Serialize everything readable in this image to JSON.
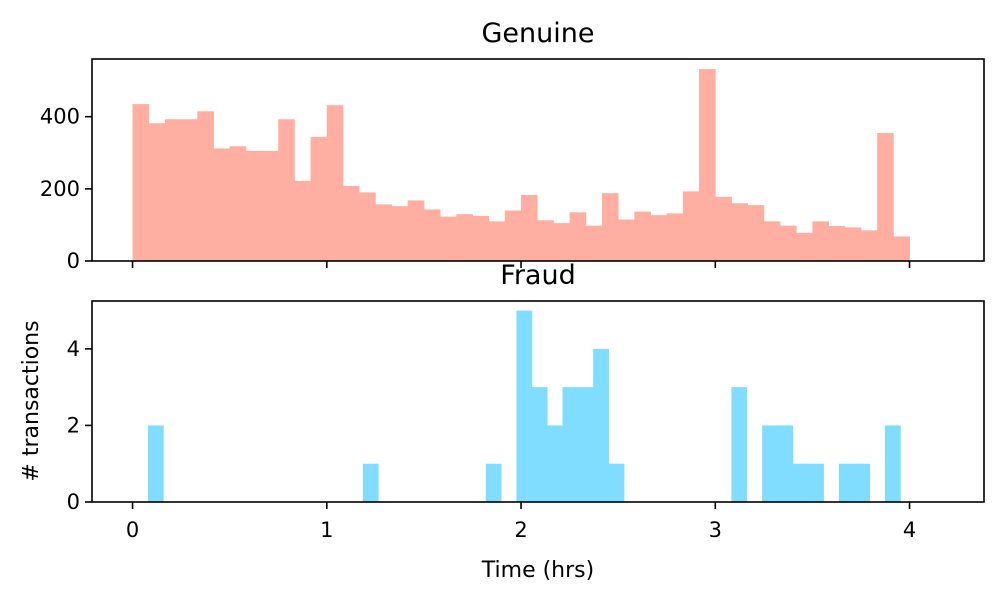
{
  "chart_data": [
    {
      "type": "bar",
      "title": "Genuine",
      "xlabel": "",
      "ylabel": "",
      "color": "#ffaea1",
      "xlim": [
        -0.2087,
        4.3833
      ],
      "ylim": [
        0,
        560
      ],
      "x_ticks": [
        0,
        1,
        2,
        3,
        4
      ],
      "show_x_tick_labels": false,
      "y_ticks": [
        0,
        200,
        400
      ],
      "y_tick_labels": [
        "0",
        "200",
        "400"
      ],
      "grid": false,
      "bins": {
        "start": 0,
        "width": 0.08333,
        "values": [
          435,
          382,
          393,
          393,
          415,
          312,
          318,
          305,
          305,
          393,
          222,
          344,
          432,
          208,
          190,
          157,
          152,
          168,
          143,
          123,
          130,
          125,
          110,
          140,
          183,
          113,
          105,
          135,
          98,
          188,
          115,
          137,
          127,
          132,
          193,
          532,
          178,
          160,
          155,
          110,
          98,
          78,
          110,
          97,
          93,
          85,
          355,
          68
        ]
      }
    },
    {
      "type": "bar",
      "title": "Fraud",
      "xlabel": "Time (hrs)",
      "ylabel": "# transactions",
      "color": "#80ddff",
      "xlim": [
        -0.2087,
        4.3833
      ],
      "ylim": [
        0,
        5.25
      ],
      "x_ticks": [
        0,
        1,
        2,
        3,
        4
      ],
      "x_tick_labels": [
        "0",
        "1",
        "2",
        "3",
        "4"
      ],
      "y_ticks": [
        0,
        2,
        4
      ],
      "y_tick_labels": [
        "0",
        "2",
        "4"
      ],
      "grid": false,
      "bins": {
        "start": 0,
        "width": 0.07905,
        "values": [
          0,
          2,
          0,
          0,
          0,
          0,
          0,
          0,
          0,
          0,
          0,
          0,
          0,
          0,
          0,
          1,
          0,
          0,
          0,
          0,
          0,
          0,
          0,
          1,
          0,
          5,
          3,
          2,
          3,
          3,
          4,
          1,
          0,
          0,
          0,
          0,
          0,
          0,
          0,
          3,
          0,
          2,
          2,
          1,
          1,
          0,
          1,
          1,
          0,
          2,
          0,
          0,
          0
        ]
      }
    }
  ]
}
